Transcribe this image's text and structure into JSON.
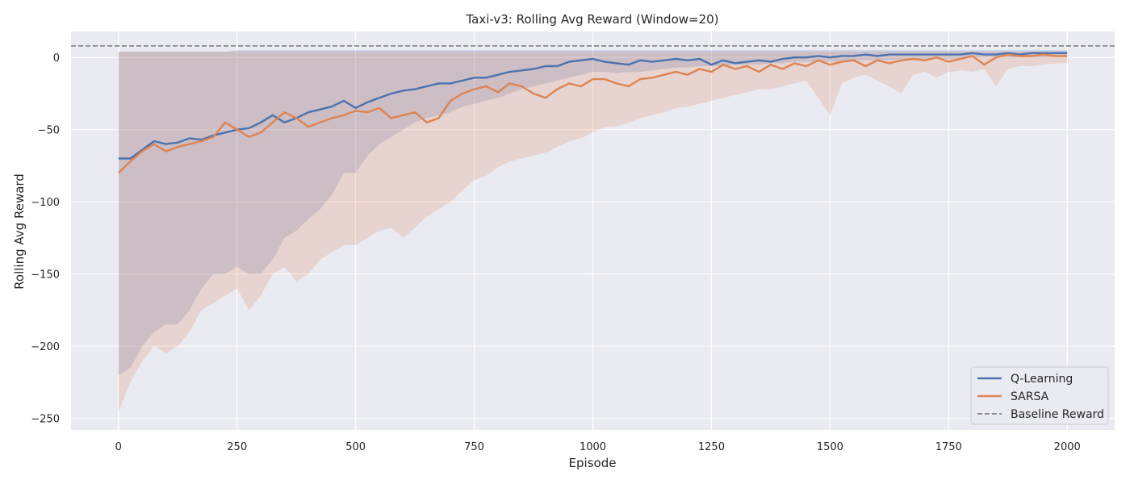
{
  "chart_data": {
    "type": "line",
    "title": "Taxi-v3: Rolling Avg Reward (Window=20)",
    "xlabel": "Episode",
    "ylabel": "Rolling Avg Reward",
    "xlim": [
      -100,
      2100
    ],
    "ylim": [
      -258,
      18
    ],
    "xticks": [
      0,
      250,
      500,
      750,
      1000,
      1250,
      1500,
      1750,
      2000
    ],
    "yticks": [
      0,
      -50,
      -100,
      -150,
      -200,
      -250
    ],
    "tick_labels": {
      "x": [
        "0",
        "250",
        "500",
        "750",
        "1000",
        "1250",
        "1500",
        "1750",
        "2000"
      ],
      "y": [
        "0",
        "−50",
        "−100",
        "−150",
        "−200",
        "−250"
      ]
    },
    "grid": true,
    "legend": "lower-right",
    "baseline": {
      "name": "Baseline Reward",
      "value": 8,
      "color": "#808080"
    },
    "series": [
      {
        "name": "Q-Learning",
        "color": "#4c72b0",
        "x": [
          0,
          25,
          50,
          75,
          100,
          125,
          150,
          175,
          200,
          225,
          250,
          275,
          300,
          325,
          350,
          375,
          400,
          425,
          450,
          475,
          500,
          525,
          550,
          575,
          600,
          625,
          650,
          675,
          700,
          725,
          750,
          775,
          800,
          825,
          850,
          875,
          900,
          925,
          950,
          975,
          1000,
          1025,
          1050,
          1075,
          1100,
          1125,
          1150,
          1175,
          1200,
          1225,
          1250,
          1275,
          1300,
          1325,
          1350,
          1375,
          1400,
          1425,
          1450,
          1475,
          1500,
          1525,
          1550,
          1575,
          1600,
          1625,
          1650,
          1675,
          1700,
          1725,
          1750,
          1775,
          1800,
          1825,
          1850,
          1875,
          1900,
          1925,
          1950,
          1975,
          2000
        ],
        "y": [
          -70,
          -70,
          -64,
          -58,
          -60,
          -59,
          -56,
          -57,
          -54,
          -52,
          -50,
          -49,
          -45,
          -40,
          -45,
          -42,
          -38,
          -36,
          -34,
          -30,
          -35,
          -31,
          -28,
          -25,
          -23,
          -22,
          -20,
          -18,
          -18,
          -16,
          -14,
          -14,
          -12,
          -10,
          -9,
          -8,
          -6,
          -6,
          -3,
          -2,
          -1,
          -3,
          -4,
          -5,
          -2,
          -3,
          -2,
          -1,
          -2,
          -1,
          -5,
          -2,
          -4,
          -3,
          -2,
          -3,
          -1,
          0,
          0,
          1,
          0,
          1,
          1,
          2,
          1,
          2,
          2,
          2,
          2,
          2,
          2,
          2,
          3,
          2,
          2,
          3,
          2,
          3,
          3,
          3,
          3
        ],
        "upper": [
          4,
          4,
          4,
          4,
          4,
          4,
          4,
          4,
          4,
          4,
          5,
          5,
          5,
          5,
          5,
          5,
          5,
          5,
          5,
          5,
          5,
          5,
          5,
          5,
          5,
          5,
          5,
          5,
          5,
          5,
          5,
          5,
          5,
          5,
          5,
          5,
          5,
          5,
          5,
          5,
          5,
          5,
          5,
          5,
          5,
          5,
          5,
          5,
          5,
          5,
          5,
          5,
          5,
          5,
          5,
          5,
          5,
          5,
          5,
          5,
          5,
          5,
          5,
          5,
          5,
          5,
          5,
          5,
          5,
          5,
          5,
          5,
          5,
          5,
          5,
          5,
          5,
          5,
          5,
          5,
          5
        ],
        "lower": [
          -220,
          -215,
          -200,
          -190,
          -185,
          -185,
          -175,
          -160,
          -150,
          -150,
          -145,
          -150,
          -150,
          -140,
          -125,
          -120,
          -112,
          -105,
          -95,
          -80,
          -80,
          -68,
          -60,
          -55,
          -50,
          -45,
          -42,
          -40,
          -38,
          -34,
          -32,
          -30,
          -28,
          -25,
          -22,
          -20,
          -18,
          -16,
          -14,
          -12,
          -10,
          -10,
          -11,
          -10,
          -10,
          -9,
          -8,
          -7,
          -7,
          -6,
          -6,
          -6,
          -5,
          -5,
          -5,
          -4,
          -4,
          -3,
          -3,
          -3,
          -3,
          -3,
          -2,
          -2,
          -2,
          -2,
          -1,
          -1,
          -1,
          -1,
          -1,
          -1,
          0,
          0,
          0,
          0,
          0,
          0,
          0,
          0,
          0
        ]
      },
      {
        "name": "SARSA",
        "color": "#dd8452",
        "x": [
          0,
          25,
          50,
          75,
          100,
          125,
          150,
          175,
          200,
          225,
          250,
          275,
          300,
          325,
          350,
          375,
          400,
          425,
          450,
          475,
          500,
          525,
          550,
          575,
          600,
          625,
          650,
          675,
          700,
          725,
          750,
          775,
          800,
          825,
          850,
          875,
          900,
          925,
          950,
          975,
          1000,
          1025,
          1050,
          1075,
          1100,
          1125,
          1150,
          1175,
          1200,
          1225,
          1250,
          1275,
          1300,
          1325,
          1350,
          1375,
          1400,
          1425,
          1450,
          1475,
          1500,
          1525,
          1550,
          1575,
          1600,
          1625,
          1650,
          1675,
          1700,
          1725,
          1750,
          1775,
          1800,
          1825,
          1850,
          1875,
          1900,
          1925,
          1950,
          1975,
          2000
        ],
        "y": [
          -80,
          -72,
          -65,
          -60,
          -65,
          -62,
          -60,
          -58,
          -55,
          -45,
          -50,
          -55,
          -52,
          -45,
          -38,
          -42,
          -48,
          -45,
          -42,
          -40,
          -37,
          -38,
          -35,
          -42,
          -40,
          -38,
          -45,
          -42,
          -30,
          -25,
          -22,
          -20,
          -24,
          -18,
          -20,
          -25,
          -28,
          -22,
          -18,
          -20,
          -15,
          -15,
          -18,
          -20,
          -15,
          -14,
          -12,
          -10,
          -12,
          -8,
          -10,
          -5,
          -8,
          -6,
          -10,
          -5,
          -8,
          -4,
          -6,
          -2,
          -5,
          -3,
          -2,
          -6,
          -2,
          -4,
          -2,
          -1,
          -2,
          0,
          -3,
          -1,
          1,
          -5,
          0,
          2,
          1,
          1,
          2,
          1,
          1
        ],
        "upper": [
          4,
          4,
          4,
          4,
          4,
          4,
          4,
          4,
          4,
          4,
          4,
          4,
          4,
          4,
          4,
          4,
          4,
          4,
          4,
          4,
          4,
          4,
          4,
          4,
          4,
          4,
          4,
          4,
          4,
          4,
          4,
          4,
          4,
          4,
          4,
          4,
          4,
          4,
          4,
          4,
          4,
          4,
          4,
          4,
          4,
          4,
          4,
          4,
          4,
          4,
          4,
          4,
          4,
          4,
          4,
          4,
          4,
          4,
          4,
          4,
          4,
          4,
          4,
          4,
          4,
          4,
          4,
          4,
          4,
          4,
          4,
          4,
          4,
          4,
          4,
          4,
          4,
          4,
          4,
          4,
          4
        ],
        "lower": [
          -245,
          -225,
          -210,
          -200,
          -205,
          -200,
          -190,
          -175,
          -170,
          -165,
          -160,
          -175,
          -165,
          -150,
          -145,
          -155,
          -150,
          -140,
          -135,
          -130,
          -130,
          -125,
          -120,
          -118,
          -125,
          -118,
          -110,
          -105,
          -100,
          -92,
          -85,
          -82,
          -76,
          -72,
          -70,
          -68,
          -66,
          -62,
          -58,
          -56,
          -52,
          -48,
          -48,
          -45,
          -42,
          -40,
          -38,
          -35,
          -34,
          -32,
          -30,
          -28,
          -26,
          -24,
          -22,
          -22,
          -20,
          -18,
          -16,
          -28,
          -40,
          -18,
          -14,
          -12,
          -16,
          -20,
          -25,
          -12,
          -10,
          -14,
          -10,
          -9,
          -10,
          -8,
          -20,
          -8,
          -6,
          -6,
          -5,
          -4,
          -4
        ]
      }
    ]
  }
}
